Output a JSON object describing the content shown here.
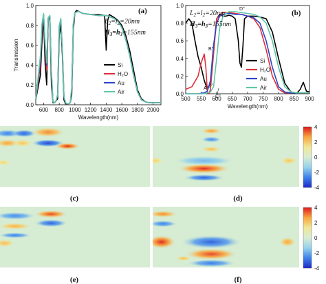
{
  "colors": {
    "Si": "#000000",
    "H2O": "#e0303a",
    "Au": "#2c46c8",
    "Air": "#5fc6a8",
    "map_bg": "#d6ecd3"
  },
  "chart_data": [
    {
      "panel": "(a)",
      "type": "line",
      "xlabel": "Wavelength(nm)",
      "ylabel": "Transmission",
      "xlim": [
        500,
        2100
      ],
      "ylim": [
        0,
        1.0
      ],
      "xticks": [
        "600",
        "800",
        "1000",
        "1200",
        "1400",
        "1600",
        "1800",
        "2000"
      ],
      "yticks": [
        "0.0",
        "0.2",
        "0.4",
        "0.6",
        "0.8",
        "1.0"
      ],
      "annotations": [
        "L2=l2=20nm",
        "H3=h3=155nm"
      ],
      "legend": [
        "Si",
        "H₂O",
        "Au",
        "Air"
      ],
      "legend_position": "right",
      "series": [
        {
          "name": "Si",
          "x": [
            500,
            560,
            580,
            600,
            620,
            640,
            650,
            660,
            680,
            700,
            720,
            740,
            760,
            780,
            800,
            820,
            840,
            860,
            880,
            900,
            920,
            940,
            960,
            980,
            1000,
            1020,
            1050,
            1100,
            1200,
            1300,
            1380,
            1400,
            1420,
            1440,
            1460,
            1500,
            1550,
            1600,
            1650,
            1700,
            1750,
            1800,
            1850,
            1900,
            1950,
            2000,
            2100
          ],
          "y": [
            0.05,
            0.3,
            0.65,
            0.87,
            0.4,
            0.2,
            0.58,
            0.88,
            0.85,
            0.2,
            0.02,
            0.02,
            0.04,
            0.06,
            0.7,
            0.8,
            0.5,
            0.05,
            0.01,
            0.01,
            0.01,
            0.02,
            0.1,
            0.75,
            0.93,
            0.95,
            0.94,
            0.92,
            0.91,
            0.91,
            0.9,
            0.55,
            0.85,
            0.91,
            0.9,
            0.88,
            0.85,
            0.8,
            0.7,
            0.55,
            0.35,
            0.15,
            0.06,
            0.03,
            0.02,
            0.02,
            0.02
          ]
        },
        {
          "name": "H2O",
          "x": [
            500,
            560,
            580,
            600,
            620,
            640,
            660,
            680,
            700,
            720,
            740,
            760,
            780,
            800,
            820,
            840,
            860,
            880,
            900,
            920,
            940,
            960,
            980,
            1000,
            1050,
            1100,
            1200,
            1300,
            1400,
            1500,
            1550,
            1600,
            1650,
            1700,
            1750,
            1800,
            1850,
            1900,
            1950,
            2000,
            2100
          ],
          "y": [
            0.05,
            0.4,
            0.78,
            0.9,
            0.55,
            0.35,
            0.86,
            0.88,
            0.3,
            0.03,
            0.02,
            0.04,
            0.1,
            0.78,
            0.85,
            0.55,
            0.08,
            0.02,
            0.01,
            0.01,
            0.02,
            0.15,
            0.8,
            0.93,
            0.94,
            0.92,
            0.91,
            0.9,
            0.9,
            0.87,
            0.84,
            0.78,
            0.67,
            0.5,
            0.3,
            0.13,
            0.05,
            0.03,
            0.02,
            0.02,
            0.02
          ]
        },
        {
          "name": "Au",
          "x": [
            500,
            560,
            580,
            600,
            620,
            640,
            660,
            680,
            700,
            720,
            740,
            760,
            780,
            800,
            820,
            840,
            860,
            880,
            900,
            920,
            940,
            960,
            980,
            1000,
            1050,
            1100,
            1200,
            1300,
            1400,
            1500,
            1550,
            1600,
            1650,
            1700,
            1750,
            1800,
            1850,
            1900,
            1950,
            2000,
            2100
          ],
          "y": [
            0.05,
            0.45,
            0.8,
            0.91,
            0.6,
            0.4,
            0.87,
            0.89,
            0.32,
            0.03,
            0.02,
            0.04,
            0.1,
            0.79,
            0.86,
            0.56,
            0.08,
            0.02,
            0.01,
            0.01,
            0.02,
            0.16,
            0.81,
            0.93,
            0.94,
            0.92,
            0.91,
            0.9,
            0.9,
            0.87,
            0.84,
            0.78,
            0.66,
            0.5,
            0.3,
            0.13,
            0.05,
            0.03,
            0.02,
            0.02,
            0.02
          ]
        },
        {
          "name": "Air",
          "x": [
            500,
            560,
            580,
            600,
            620,
            640,
            660,
            680,
            700,
            720,
            740,
            760,
            780,
            800,
            820,
            840,
            860,
            880,
            900,
            920,
            940,
            960,
            980,
            1000,
            1050,
            1100,
            1200,
            1300,
            1400,
            1500,
            1550,
            1600,
            1650,
            1700,
            1750,
            1800,
            1850,
            1900,
            1950,
            2000,
            2100
          ],
          "y": [
            0.05,
            0.5,
            0.82,
            0.92,
            0.62,
            0.42,
            0.88,
            0.9,
            0.34,
            0.03,
            0.02,
            0.04,
            0.1,
            0.8,
            0.87,
            0.57,
            0.09,
            0.02,
            0.01,
            0.01,
            0.02,
            0.17,
            0.82,
            0.93,
            0.94,
            0.92,
            0.91,
            0.9,
            0.9,
            0.87,
            0.84,
            0.78,
            0.66,
            0.5,
            0.3,
            0.13,
            0.05,
            0.03,
            0.02,
            0.02,
            0.02
          ]
        }
      ]
    },
    {
      "panel": "(b)",
      "type": "line",
      "xlabel": "Wavelength(nm)",
      "ylabel": "",
      "xlim": [
        500,
        900
      ],
      "ylim": [
        0,
        1.0
      ],
      "xticks": [
        "500",
        "550",
        "600",
        "650",
        "700",
        "750",
        "800",
        "850",
        "900"
      ],
      "yticks": [
        "0.0",
        "0.2",
        "0.4",
        "0.6",
        "0.8",
        "1.0"
      ],
      "annotations": [
        "L2=l2=20nm",
        "H3=h3=155nm"
      ],
      "point_labels": [
        "A''",
        "B''",
        "C''",
        "D''"
      ],
      "legend": [
        "Si",
        "H₂O",
        "Au",
        "Air"
      ],
      "legend_position": "right",
      "series": [
        {
          "name": "Si",
          "x": [
            500,
            510,
            520,
            530,
            540,
            550,
            560,
            570,
            580,
            590,
            600,
            610,
            620,
            630,
            640,
            650,
            660,
            670,
            675,
            680,
            685,
            690,
            700,
            720,
            740,
            760,
            780,
            800,
            820,
            840,
            860,
            870,
            880,
            890,
            900
          ],
          "y": [
            0.8,
            0.85,
            0.8,
            0.6,
            0.42,
            0.3,
            0.15,
            0.05,
            0.12,
            0.5,
            0.85,
            0.9,
            0.88,
            0.88,
            0.89,
            0.88,
            0.85,
            0.6,
            0.35,
            0.3,
            0.55,
            0.85,
            0.88,
            0.88,
            0.87,
            0.85,
            0.7,
            0.4,
            0.12,
            0.02,
            0.01,
            0.05,
            0.13,
            0.03,
            0.02
          ]
        },
        {
          "name": "H2O",
          "x": [
            500,
            520,
            540,
            550,
            560,
            565,
            570,
            575,
            580,
            590,
            600,
            620,
            640,
            660,
            680,
            700,
            720,
            740,
            760,
            780,
            800,
            820,
            840,
            860,
            880,
            900
          ],
          "y": [
            0.05,
            0.08,
            0.2,
            0.35,
            0.45,
            0.3,
            0.02,
            0.0,
            0.05,
            0.45,
            0.85,
            0.92,
            0.92,
            0.91,
            0.9,
            0.88,
            0.85,
            0.75,
            0.5,
            0.2,
            0.05,
            0.01,
            0.01,
            0.01,
            0.01,
            0.01
          ]
        },
        {
          "name": "Au",
          "x": [
            500,
            520,
            540,
            560,
            570,
            580,
            590,
            600,
            610,
            620,
            640,
            660,
            680,
            700,
            720,
            740,
            760,
            780,
            800,
            820,
            840,
            860,
            880,
            900
          ],
          "y": [
            0.0,
            0.0,
            0.0,
            0.01,
            0.03,
            0.15,
            0.55,
            0.8,
            0.88,
            0.9,
            0.91,
            0.9,
            0.9,
            0.88,
            0.86,
            0.8,
            0.6,
            0.3,
            0.08,
            0.02,
            0.01,
            0.01,
            0.01,
            0.01
          ]
        },
        {
          "name": "Air",
          "x": [
            500,
            520,
            540,
            560,
            580,
            590,
            600,
            610,
            620,
            630,
            640,
            660,
            680,
            700,
            720,
            740,
            760,
            780,
            800,
            820,
            840,
            860,
            880,
            900
          ],
          "y": [
            0.0,
            0.0,
            0.0,
            0.0,
            0.02,
            0.08,
            0.4,
            0.75,
            0.87,
            0.91,
            0.93,
            0.93,
            0.92,
            0.91,
            0.9,
            0.87,
            0.8,
            0.6,
            0.3,
            0.08,
            0.02,
            0.01,
            0.01,
            0.01
          ]
        }
      ]
    },
    {
      "panel": "(c)",
      "type": "heatmap",
      "colorbar_ticks": [
        "4",
        "2",
        "0",
        "-2",
        "-4"
      ],
      "clim": [
        -4,
        4
      ],
      "blobs": [
        {
          "cx": 0.05,
          "cy": 0.12,
          "rx": 0.07,
          "ry": 0.04,
          "v": -2.5
        },
        {
          "cx": 0.16,
          "cy": 0.12,
          "rx": 0.06,
          "ry": 0.04,
          "v": -3.0
        },
        {
          "cx": 0.32,
          "cy": 0.1,
          "rx": 0.08,
          "ry": 0.05,
          "v": 2.8
        },
        {
          "cx": 0.05,
          "cy": 0.28,
          "rx": 0.06,
          "ry": 0.04,
          "v": 2.5
        },
        {
          "cx": 0.15,
          "cy": 0.28,
          "rx": 0.05,
          "ry": 0.04,
          "v": 1.8
        },
        {
          "cx": 0.32,
          "cy": 0.28,
          "rx": 0.08,
          "ry": 0.04,
          "v": -3.5
        },
        {
          "cx": 0.45,
          "cy": 0.33,
          "rx": 0.06,
          "ry": 0.035,
          "v": 3.8
        },
        {
          "cx": 0.02,
          "cy": 0.6,
          "rx": 0.04,
          "ry": 0.03,
          "v": 1.5
        }
      ]
    },
    {
      "panel": "(d)",
      "type": "heatmap",
      "colorbar_ticks": [
        "4",
        "2",
        "0",
        "-2",
        "-4"
      ],
      "clim": [
        -4,
        4
      ],
      "blobs": [
        {
          "cx": 0.4,
          "cy": 0.08,
          "rx": 0.05,
          "ry": 0.03,
          "v": 2.6
        },
        {
          "cx": 0.4,
          "cy": 0.22,
          "rx": 0.05,
          "ry": 0.03,
          "v": -2.3
        },
        {
          "cx": 0.4,
          "cy": 0.38,
          "rx": 0.05,
          "ry": 0.03,
          "v": 2.0
        },
        {
          "cx": 0.02,
          "cy": 0.57,
          "rx": 0.04,
          "ry": 0.04,
          "v": 1.5
        },
        {
          "cx": 0.35,
          "cy": 0.57,
          "rx": 0.15,
          "ry": 0.05,
          "v": -1.5
        },
        {
          "cx": 0.35,
          "cy": 0.7,
          "rx": 0.13,
          "ry": 0.05,
          "v": 3.8
        },
        {
          "cx": 0.35,
          "cy": 0.85,
          "rx": 0.1,
          "ry": 0.035,
          "v": -3.0
        },
        {
          "cx": 0.93,
          "cy": 0.57,
          "rx": 0.04,
          "ry": 0.04,
          "v": 1.8
        }
      ]
    },
    {
      "panel": "(e)",
      "type": "heatmap",
      "colorbar_ticks": [],
      "clim": [
        -4,
        4
      ],
      "blobs": [
        {
          "cx": 0.1,
          "cy": 0.15,
          "rx": 0.1,
          "ry": 0.04,
          "v": -2.3
        },
        {
          "cx": 0.34,
          "cy": 0.12,
          "rx": 0.08,
          "ry": 0.04,
          "v": 3.5
        },
        {
          "cx": 0.1,
          "cy": 0.32,
          "rx": 0.08,
          "ry": 0.035,
          "v": 2.2
        },
        {
          "cx": 0.34,
          "cy": 0.27,
          "rx": 0.08,
          "ry": 0.04,
          "v": -3.0
        },
        {
          "cx": 0.1,
          "cy": 0.47,
          "rx": 0.08,
          "ry": 0.03,
          "v": -2.5
        },
        {
          "cx": 0.03,
          "cy": 0.6,
          "rx": 0.05,
          "ry": 0.04,
          "v": 2.0
        }
      ]
    },
    {
      "panel": "(f)",
      "type": "heatmap",
      "colorbar_ticks": [
        "4",
        "2",
        "0",
        "-2",
        "-4"
      ],
      "clim": [
        -4,
        4
      ],
      "blobs": [
        {
          "cx": 0.07,
          "cy": 0.12,
          "rx": 0.07,
          "ry": 0.035,
          "v": 2.8
        },
        {
          "cx": 0.07,
          "cy": 0.28,
          "rx": 0.07,
          "ry": 0.035,
          "v": -2.5
        },
        {
          "cx": 0.06,
          "cy": 0.58,
          "rx": 0.07,
          "ry": 0.07,
          "v": 3.8
        },
        {
          "cx": 0.4,
          "cy": 0.58,
          "rx": 0.15,
          "ry": 0.07,
          "v": -3.0
        },
        {
          "cx": 0.4,
          "cy": 0.78,
          "rx": 0.13,
          "ry": 0.06,
          "v": 3.5
        },
        {
          "cx": 0.4,
          "cy": 0.93,
          "rx": 0.12,
          "ry": 0.04,
          "v": -2.6
        },
        {
          "cx": 0.21,
          "cy": 0.85,
          "rx": 0.04,
          "ry": 0.025,
          "v": 2.0
        },
        {
          "cx": 0.92,
          "cy": 0.58,
          "rx": 0.04,
          "ry": 0.05,
          "v": 2.5
        }
      ]
    }
  ]
}
